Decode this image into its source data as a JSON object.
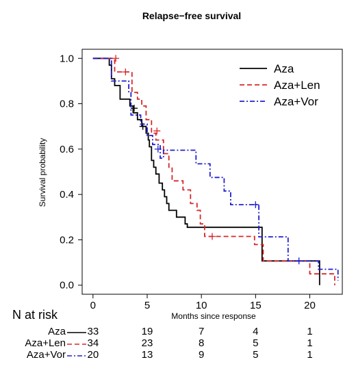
{
  "chart_data": {
    "type": "line",
    "title": "Relapse−free survival",
    "xlabel": "Months since response",
    "ylabel": "Survival probability",
    "xlim": [
      -1,
      23
    ],
    "ylim": [
      -0.04,
      1.04
    ],
    "x_ticks": [
      0,
      5,
      10,
      15,
      20
    ],
    "y_ticks": [
      0.0,
      0.2,
      0.4,
      0.6,
      0.8,
      1.0
    ],
    "x_tick_labels": [
      "0",
      "5",
      "10",
      "15",
      "20"
    ],
    "y_tick_labels": [
      "0.0",
      "0.2",
      "0.4",
      "0.6",
      "0.8",
      "1.0"
    ],
    "legend_position": "top-right",
    "series": [
      {
        "name": "Aza",
        "color": "#000000",
        "dash": "solid",
        "points": [
          [
            0,
            1.0
          ],
          [
            1.5,
            1.0
          ],
          [
            1.5,
            0.97
          ],
          [
            1.7,
            0.97
          ],
          [
            1.7,
            0.91
          ],
          [
            2.0,
            0.91
          ],
          [
            2.0,
            0.88
          ],
          [
            2.5,
            0.88
          ],
          [
            2.5,
            0.82
          ],
          [
            3.4,
            0.82
          ],
          [
            3.4,
            0.79
          ],
          [
            3.7,
            0.79
          ],
          [
            3.7,
            0.76
          ],
          [
            4.1,
            0.76
          ],
          [
            4.1,
            0.73
          ],
          [
            4.5,
            0.73
          ],
          [
            4.5,
            0.7
          ],
          [
            4.9,
            0.7
          ],
          [
            4.9,
            0.67
          ],
          [
            5.1,
            0.67
          ],
          [
            5.1,
            0.64
          ],
          [
            5.2,
            0.64
          ],
          [
            5.2,
            0.61
          ],
          [
            5.4,
            0.61
          ],
          [
            5.4,
            0.55
          ],
          [
            5.6,
            0.55
          ],
          [
            5.6,
            0.52
          ],
          [
            5.8,
            0.52
          ],
          [
            5.8,
            0.49
          ],
          [
            6.1,
            0.49
          ],
          [
            6.1,
            0.45
          ],
          [
            6.4,
            0.45
          ],
          [
            6.4,
            0.42
          ],
          [
            6.6,
            0.42
          ],
          [
            6.6,
            0.39
          ],
          [
            6.8,
            0.39
          ],
          [
            6.8,
            0.36
          ],
          [
            7.0,
            0.36
          ],
          [
            7.0,
            0.33
          ],
          [
            7.7,
            0.33
          ],
          [
            7.7,
            0.3
          ],
          [
            8.5,
            0.3
          ],
          [
            8.5,
            0.27
          ],
          [
            8.7,
            0.27
          ],
          [
            8.7,
            0.255
          ],
          [
            15.6,
            0.255
          ],
          [
            15.6,
            0.107
          ],
          [
            20.9,
            0.107
          ],
          [
            20.9,
            0.0
          ]
        ],
        "censor": [
          [
            4.6,
            0.7
          ],
          [
            3.8,
            0.78
          ]
        ]
      },
      {
        "name": "Aza+Len",
        "color": "#d62728",
        "dash": "dashed",
        "points": [
          [
            0,
            1.0
          ],
          [
            2.0,
            1.0
          ],
          [
            2.0,
            0.94
          ],
          [
            3.6,
            0.94
          ],
          [
            3.6,
            0.85
          ],
          [
            4.1,
            0.85
          ],
          [
            4.1,
            0.82
          ],
          [
            4.5,
            0.82
          ],
          [
            4.5,
            0.79
          ],
          [
            4.9,
            0.79
          ],
          [
            4.9,
            0.73
          ],
          [
            5.4,
            0.73
          ],
          [
            5.4,
            0.67
          ],
          [
            5.8,
            0.67
          ],
          [
            5.8,
            0.64
          ],
          [
            6.5,
            0.64
          ],
          [
            6.5,
            0.58
          ],
          [
            7.0,
            0.58
          ],
          [
            7.0,
            0.52
          ],
          [
            7.3,
            0.52
          ],
          [
            7.3,
            0.46
          ],
          [
            8.3,
            0.46
          ],
          [
            8.3,
            0.42
          ],
          [
            9.0,
            0.42
          ],
          [
            9.0,
            0.36
          ],
          [
            9.6,
            0.36
          ],
          [
            9.6,
            0.33
          ],
          [
            9.9,
            0.33
          ],
          [
            9.9,
            0.27
          ],
          [
            10.3,
            0.27
          ],
          [
            10.3,
            0.215
          ],
          [
            14.9,
            0.215
          ],
          [
            14.9,
            0.179
          ],
          [
            15.7,
            0.179
          ],
          [
            15.7,
            0.107
          ],
          [
            20.0,
            0.107
          ],
          [
            20.0,
            0.05
          ],
          [
            22.3,
            0.05
          ],
          [
            22.3,
            0.0
          ]
        ],
        "censor": [
          [
            2.1,
            1.0
          ],
          [
            3.0,
            0.94
          ],
          [
            5.9,
            0.68
          ],
          [
            11.0,
            0.215
          ]
        ]
      },
      {
        "name": "Aza+Vor",
        "color": "#1f1fd1",
        "dash": "dashdot",
        "points": [
          [
            0,
            1.0
          ],
          [
            1.7,
            1.0
          ],
          [
            1.7,
            0.9
          ],
          [
            3.3,
            0.9
          ],
          [
            3.3,
            0.85
          ],
          [
            3.5,
            0.85
          ],
          [
            3.5,
            0.75
          ],
          [
            4.4,
            0.75
          ],
          [
            4.4,
            0.71
          ],
          [
            5.0,
            0.71
          ],
          [
            5.0,
            0.66
          ],
          [
            5.5,
            0.66
          ],
          [
            5.5,
            0.62
          ],
          [
            6.2,
            0.62
          ],
          [
            6.2,
            0.56
          ],
          [
            6.5,
            0.56
          ],
          [
            6.5,
            0.595
          ],
          [
            9.5,
            0.595
          ],
          [
            9.5,
            0.535
          ],
          [
            10.8,
            0.535
          ],
          [
            10.8,
            0.475
          ],
          [
            12.1,
            0.475
          ],
          [
            12.1,
            0.415
          ],
          [
            12.7,
            0.415
          ],
          [
            12.7,
            0.355
          ],
          [
            15.3,
            0.355
          ],
          [
            15.3,
            0.213
          ],
          [
            18.0,
            0.213
          ],
          [
            18.0,
            0.107
          ],
          [
            20.8,
            0.107
          ],
          [
            20.8,
            0.07
          ],
          [
            22.6,
            0.07
          ],
          [
            22.6,
            0.02
          ]
        ],
        "censor": [
          [
            6.0,
            0.6
          ],
          [
            15.0,
            0.355
          ],
          [
            19.0,
            0.107
          ]
        ]
      }
    ],
    "risk_table": {
      "heading": "N at risk",
      "times": [
        0,
        5,
        10,
        15,
        20
      ],
      "rows": [
        {
          "label": "Aza",
          "values": [
            "33",
            "19",
            "7",
            "4",
            "1"
          ]
        },
        {
          "label": "Aza+Len",
          "values": [
            "34",
            "23",
            "8",
            "5",
            "1"
          ]
        },
        {
          "label": "Aza+Vor",
          "values": [
            "20",
            "13",
            "9",
            "5",
            "1"
          ]
        }
      ]
    }
  }
}
